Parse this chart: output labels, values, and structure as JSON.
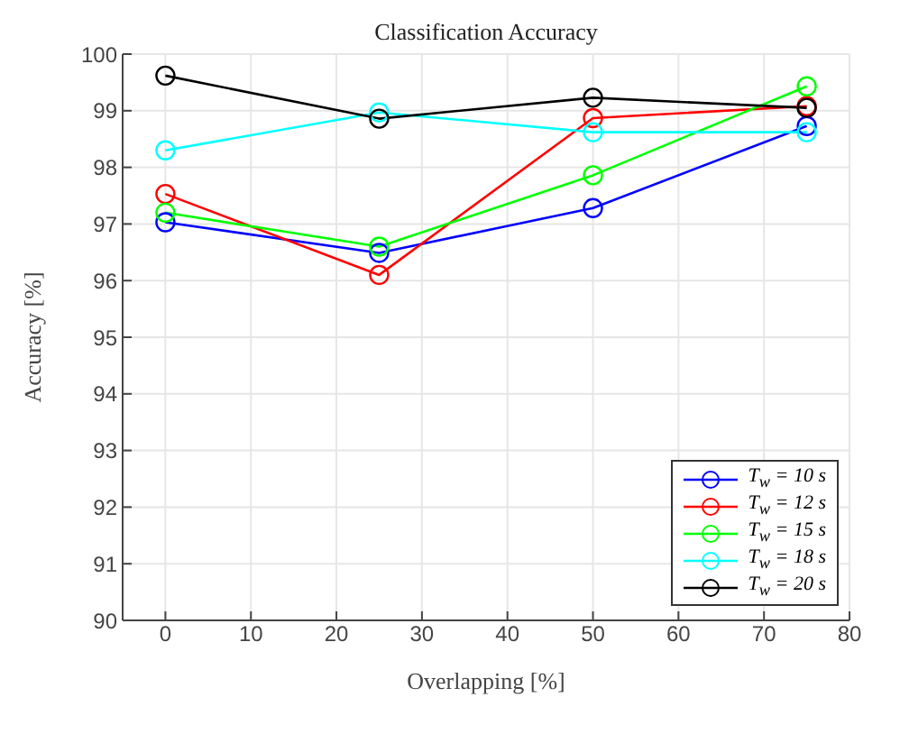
{
  "chart_data": {
    "type": "line",
    "title": "Classification Accuracy",
    "xlabel": "Overlapping [%]",
    "ylabel": "Accuracy [%]",
    "x": [
      0,
      25,
      50,
      75
    ],
    "series": [
      {
        "name": "T$_{w}$ = 10 s",
        "color": "#0000ff",
        "values": [
          97.03,
          96.49,
          97.28,
          98.73
        ]
      },
      {
        "name": "T$_{w}$ = 12 s",
        "color": "#ff0000",
        "values": [
          97.53,
          96.1,
          98.87,
          99.08
        ]
      },
      {
        "name": "T$_{w}$ = 15 s",
        "color": "#00ff00",
        "values": [
          97.2,
          96.6,
          97.86,
          99.43
        ]
      },
      {
        "name": "T$_{w}$ = 18 s",
        "color": "#00ffff",
        "values": [
          98.3,
          98.97,
          98.62,
          98.62
        ]
      },
      {
        "name": "T$_{w}$ = 20 s",
        "color": "#000000",
        "values": [
          99.62,
          98.86,
          99.23,
          99.05
        ]
      }
    ],
    "xlim": [
      -5,
      80
    ],
    "xticks": [
      0,
      10,
      20,
      30,
      40,
      50,
      60,
      70,
      80
    ],
    "ylim": [
      90,
      100
    ],
    "yticks": [
      90,
      91,
      92,
      93,
      94,
      95,
      96,
      97,
      98,
      99,
      100
    ],
    "grid": true,
    "legend": "bottom right",
    "marker": "circle",
    "line_style": "solid"
  }
}
